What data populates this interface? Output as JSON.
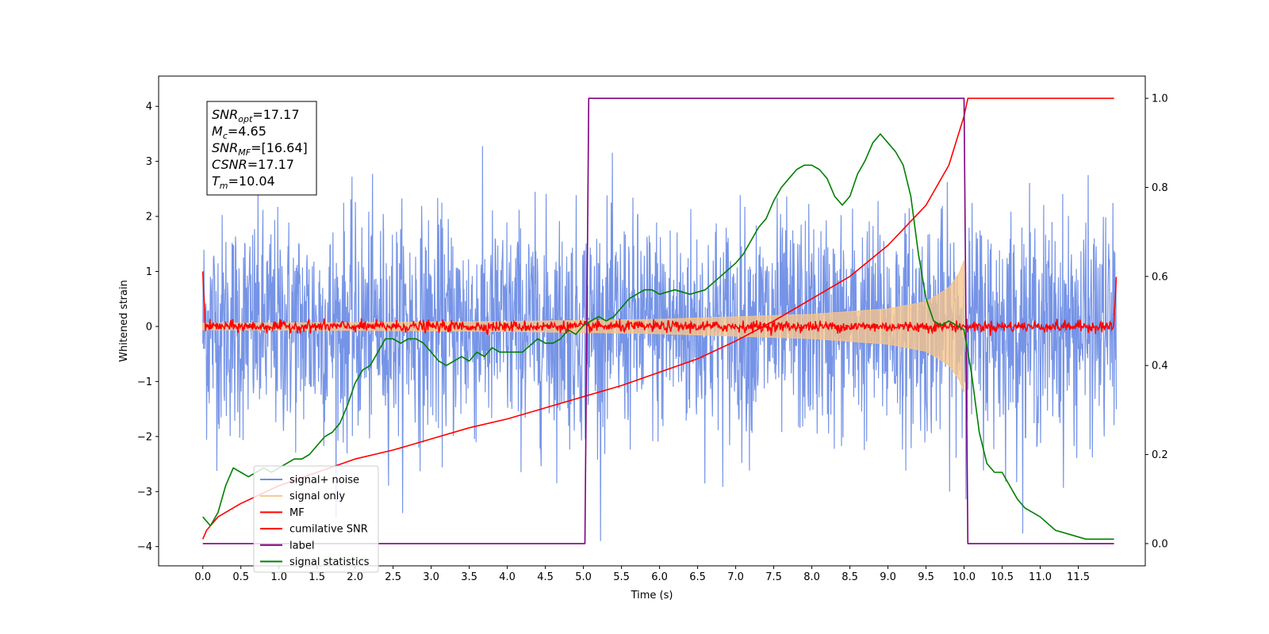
{
  "chart_data": {
    "type": "line",
    "xlabel": "Time (s)",
    "ylabel": "Whitened strain",
    "ylabel_right": "",
    "xlim": [
      -0.58,
      12.38
    ],
    "ylim": [
      -4.35,
      4.55
    ],
    "ylim_right": [
      -0.05,
      1.05
    ],
    "x_ticks": [
      "0.0",
      "0.5",
      "1.0",
      "1.5",
      "2.0",
      "2.5",
      "3.0",
      "3.5",
      "4.0",
      "4.5",
      "5.0",
      "5.5",
      "6.0",
      "6.5",
      "7.0",
      "7.5",
      "8.0",
      "8.5",
      "9.0",
      "9.5",
      "10.0",
      "10.5",
      "11.0",
      "11.5"
    ],
    "y_ticks": [
      "4",
      "3",
      "2",
      "1",
      "0",
      "−1",
      "−2",
      "−3",
      "−4"
    ],
    "y_ticks_right": [
      "1.0",
      "0.8",
      "0.6",
      "0.4",
      "0.2",
      "0.0"
    ],
    "annotation": {
      "lines": [
        {
          "main": "SNR",
          "sub": "opt",
          "rest": "=17.17"
        },
        {
          "main": "M",
          "sub": "c",
          "rest": "=4.65"
        },
        {
          "main": "SNR",
          "sub": "MF",
          "rest": "=[16.64]"
        },
        {
          "main": "CSNR",
          "sub": "",
          "rest": "=17.17"
        },
        {
          "main": "T",
          "sub": "m",
          "rest": "=10.04"
        }
      ]
    },
    "legend": {
      "placement": "lower-left",
      "entries": [
        {
          "label": "signal+ noise",
          "color": "#6f8ee6"
        },
        {
          "label": "signal only",
          "color": "#f7c58a"
        },
        {
          "label": "MF",
          "color": "#ff0000"
        },
        {
          "label": "cumilative SNR",
          "color": "#ff0000"
        },
        {
          "label": "label",
          "color": "#800080"
        },
        {
          "label": "signal statistics",
          "color": "#008000"
        }
      ]
    },
    "series": [
      {
        "name": "signal+ noise",
        "axis": "left",
        "color": "#6f8ee6",
        "kind": "noise",
        "x_range": [
          0.0,
          12.0
        ],
        "amplitude_std": 1.0
      },
      {
        "name": "signal only",
        "axis": "left",
        "color": "#f7c58a",
        "kind": "chirp-envelope",
        "envelope_x": [
          0.0,
          2.0,
          4.0,
          6.0,
          8.0,
          9.0,
          9.5,
          9.8,
          9.95,
          10.0
        ],
        "envelope_y": [
          0.06,
          0.07,
          0.09,
          0.13,
          0.22,
          0.32,
          0.45,
          0.7,
          1.0,
          1.2
        ]
      },
      {
        "name": "MF",
        "axis": "left",
        "color": "#ff0000",
        "kind": "noise-small",
        "x_range": [
          0.0,
          12.0
        ],
        "amplitude_std": 0.05,
        "start_value": 1.0,
        "end_value": 0.9
      },
      {
        "name": "cumilative SNR",
        "axis": "right",
        "color": "#ff0000",
        "x": [
          0.0,
          0.05,
          0.2,
          0.5,
          1.0,
          1.5,
          2.0,
          2.5,
          3.0,
          3.5,
          4.0,
          4.5,
          5.0,
          5.5,
          6.0,
          6.5,
          7.0,
          7.5,
          8.0,
          8.5,
          9.0,
          9.5,
          9.8,
          10.0,
          10.05,
          11.97
        ],
        "y": [
          0.01,
          0.03,
          0.06,
          0.09,
          0.13,
          0.16,
          0.19,
          0.21,
          0.235,
          0.26,
          0.28,
          0.305,
          0.33,
          0.355,
          0.385,
          0.415,
          0.455,
          0.5,
          0.55,
          0.6,
          0.67,
          0.76,
          0.85,
          0.96,
          1.0,
          1.0
        ]
      },
      {
        "name": "label",
        "axis": "right",
        "color": "#800080",
        "x": [
          0.0,
          5.02,
          5.07,
          10.0,
          10.05,
          11.97
        ],
        "y": [
          0.0,
          0.0,
          1.0,
          1.0,
          0.0,
          0.0
        ]
      },
      {
        "name": "signal statistics",
        "axis": "right",
        "color": "#008000",
        "x": [
          0.0,
          0.1,
          0.2,
          0.3,
          0.4,
          0.5,
          0.6,
          0.7,
          0.8,
          0.9,
          1.0,
          1.1,
          1.2,
          1.3,
          1.4,
          1.5,
          1.6,
          1.7,
          1.8,
          1.9,
          2.0,
          2.1,
          2.2,
          2.3,
          2.4,
          2.5,
          2.6,
          2.7,
          2.8,
          2.9,
          3.0,
          3.1,
          3.2,
          3.3,
          3.4,
          3.5,
          3.6,
          3.7,
          3.8,
          3.9,
          4.0,
          4.2,
          4.4,
          4.5,
          4.6,
          4.7,
          4.8,
          4.9,
          5.0,
          5.1,
          5.2,
          5.3,
          5.4,
          5.5,
          5.6,
          5.7,
          5.8,
          5.9,
          6.0,
          6.2,
          6.4,
          6.6,
          6.8,
          7.0,
          7.1,
          7.2,
          7.3,
          7.4,
          7.5,
          7.6,
          7.7,
          7.8,
          7.9,
          8.0,
          8.1,
          8.2,
          8.3,
          8.4,
          8.5,
          8.6,
          8.7,
          8.8,
          8.9,
          9.0,
          9.1,
          9.2,
          9.3,
          9.4,
          9.5,
          9.6,
          9.7,
          9.8,
          9.9,
          10.0,
          10.1,
          10.2,
          10.3,
          10.4,
          10.5,
          10.6,
          10.7,
          10.8,
          10.9,
          11.0,
          11.2,
          11.4,
          11.6,
          11.8,
          11.97
        ],
        "y": [
          0.06,
          0.04,
          0.07,
          0.13,
          0.17,
          0.16,
          0.15,
          0.16,
          0.17,
          0.16,
          0.17,
          0.18,
          0.19,
          0.19,
          0.2,
          0.22,
          0.24,
          0.25,
          0.27,
          0.31,
          0.36,
          0.39,
          0.4,
          0.43,
          0.46,
          0.46,
          0.45,
          0.46,
          0.46,
          0.45,
          0.43,
          0.41,
          0.4,
          0.41,
          0.42,
          0.41,
          0.43,
          0.42,
          0.44,
          0.43,
          0.43,
          0.43,
          0.46,
          0.45,
          0.45,
          0.46,
          0.48,
          0.47,
          0.49,
          0.5,
          0.51,
          0.5,
          0.51,
          0.53,
          0.55,
          0.56,
          0.57,
          0.57,
          0.56,
          0.57,
          0.56,
          0.57,
          0.6,
          0.63,
          0.65,
          0.68,
          0.71,
          0.73,
          0.77,
          0.8,
          0.82,
          0.84,
          0.85,
          0.85,
          0.84,
          0.82,
          0.78,
          0.76,
          0.78,
          0.83,
          0.86,
          0.9,
          0.92,
          0.9,
          0.88,
          0.85,
          0.78,
          0.65,
          0.55,
          0.5,
          0.49,
          0.5,
          0.49,
          0.48,
          0.38,
          0.25,
          0.18,
          0.16,
          0.16,
          0.13,
          0.1,
          0.08,
          0.07,
          0.06,
          0.03,
          0.02,
          0.01,
          0.01,
          0.01
        ]
      }
    ]
  }
}
